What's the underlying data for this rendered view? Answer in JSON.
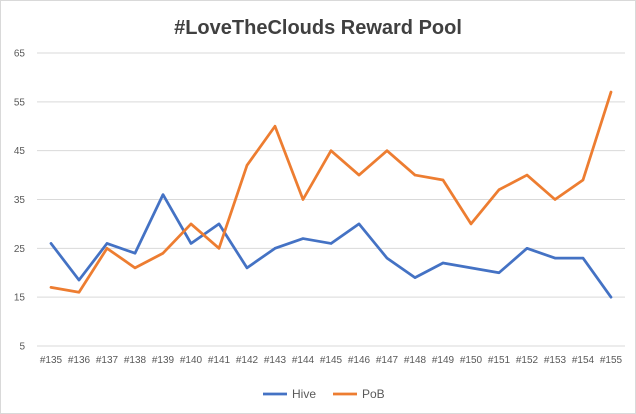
{
  "chart_data": {
    "type": "line",
    "title": "#LoveTheClouds Reward Pool",
    "xlabel": "",
    "ylabel": "",
    "ylim": [
      5,
      65
    ],
    "y_ticks": [
      5,
      15,
      25,
      35,
      45,
      55,
      65
    ],
    "grid": true,
    "legend_position": "bottom",
    "categories": [
      "#135",
      "#136",
      "#137",
      "#138",
      "#139",
      "#140",
      "#141",
      "#142",
      "#143",
      "#144",
      "#145",
      "#146",
      "#147",
      "#148",
      "#149",
      "#150",
      "#151",
      "#152",
      "#153",
      "#154",
      "#155"
    ],
    "series": [
      {
        "name": "Hive",
        "color": "#4472c4",
        "values": [
          26,
          18.5,
          26,
          24,
          36,
          26,
          30,
          21,
          25,
          27,
          26,
          30,
          23,
          19,
          22,
          21,
          20,
          25,
          23,
          23,
          15
        ]
      },
      {
        "name": "PoB",
        "color": "#ed7d31",
        "values": [
          17,
          16,
          25,
          21,
          24,
          30,
          25,
          42,
          50,
          35,
          45,
          40,
          45,
          40,
          39,
          30,
          37,
          40,
          35,
          39,
          57
        ]
      }
    ]
  }
}
